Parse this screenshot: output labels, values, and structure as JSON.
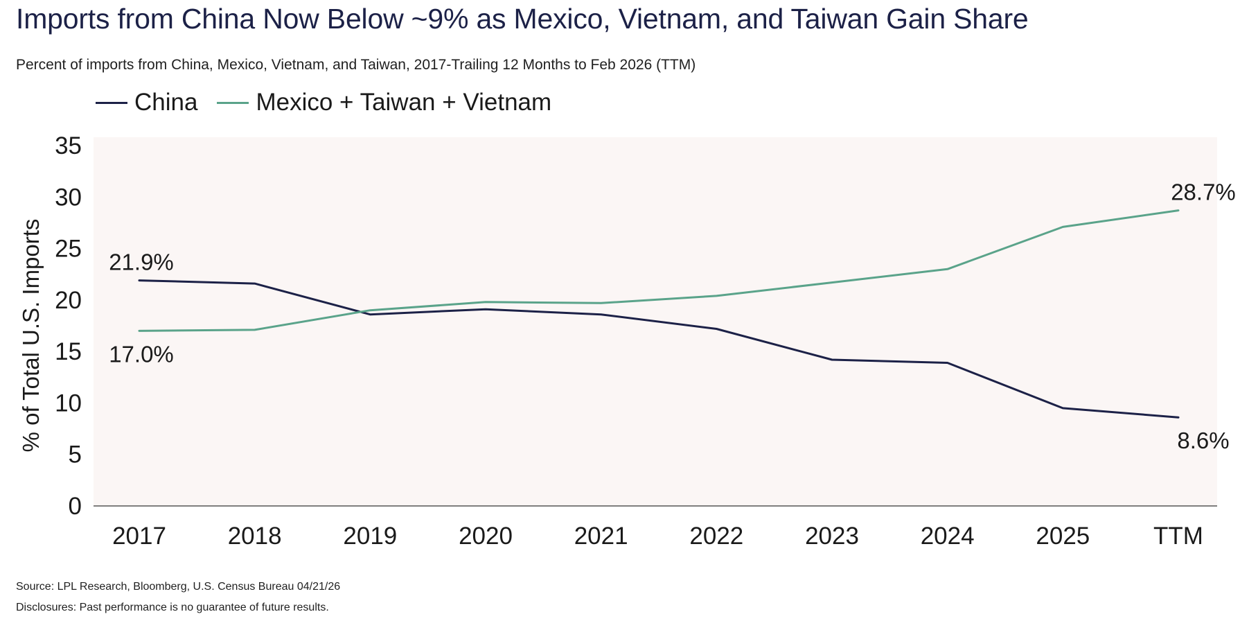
{
  "title": "Imports from China Now Below ~9% as Mexico, Vietnam, and Taiwan Gain Share",
  "subtitle": "Percent of imports from China, Mexico, Vietnam, and Taiwan, 2017-Trailing 12 Months to Feb 2026 (TTM)",
  "source": "Source: LPL Research, Bloomberg, U.S. Census Bureau 04/21/26",
  "disclosures": "Disclosures: Past performance is no guarantee of future results.",
  "colors": {
    "china": "#1c2147",
    "mexico_taiwan_vietnam": "#5aa38a",
    "plot_background": "#fbf6f5",
    "axis": "#555555"
  },
  "chart_data": {
    "type": "line",
    "title": "Imports from China Now Below ~9% as Mexico, Vietnam, and Taiwan Gain Share",
    "subtitle": "Percent of imports from China, Mexico, Vietnam, and Taiwan, 2017-Trailing 12 Months to Feb 2026 (TTM)",
    "xlabel": "",
    "ylabel": "% of Total U.S. Imports",
    "categories": [
      "2017",
      "2018",
      "2019",
      "2020",
      "2021",
      "2022",
      "2023",
      "2024",
      "2025",
      "TTM"
    ],
    "ylim": [
      0,
      35
    ],
    "yticks": [
      "0",
      "5",
      "10",
      "15",
      "20",
      "25",
      "30",
      "35"
    ],
    "grid": false,
    "legend_position": "top-left",
    "series": [
      {
        "name": "China",
        "color": "#1c2147",
        "values": [
          21.9,
          21.6,
          18.6,
          19.1,
          18.6,
          17.2,
          14.2,
          13.9,
          9.5,
          8.6
        ]
      },
      {
        "name": "Mexico + Taiwan + Vietnam",
        "color": "#5aa38a",
        "values": [
          17.0,
          17.1,
          19.0,
          19.8,
          19.7,
          20.4,
          21.7,
          23.0,
          27.1,
          28.7
        ]
      }
    ],
    "annotations": [
      {
        "text": "21.9%",
        "series": "China",
        "category": "2017"
      },
      {
        "text": "17.0%",
        "series": "Mexico + Taiwan + Vietnam",
        "category": "2017"
      },
      {
        "text": "28.7%",
        "series": "Mexico + Taiwan + Vietnam",
        "category": "TTM"
      },
      {
        "text": "8.6%",
        "series": "China",
        "category": "TTM"
      }
    ]
  }
}
